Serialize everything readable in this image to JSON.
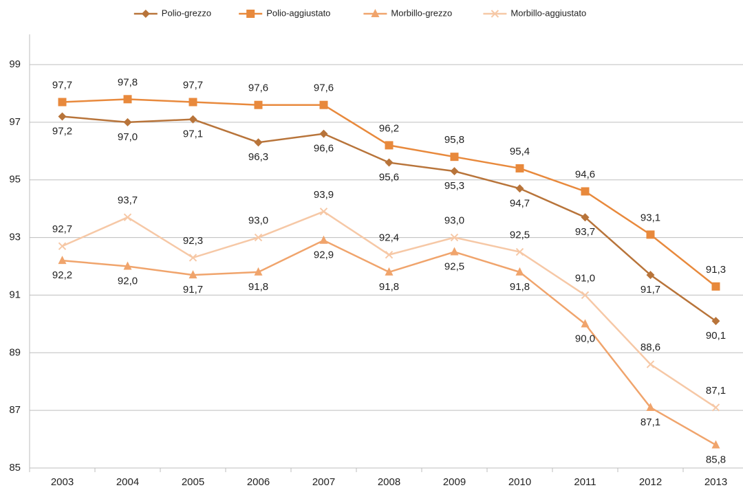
{
  "chart_data": {
    "type": "line",
    "categories": [
      "2003",
      "2004",
      "2005",
      "2006",
      "2007",
      "2008",
      "2009",
      "2010",
      "2011",
      "2012",
      "2013"
    ],
    "series": [
      {
        "name": "Polio-grezzo",
        "color": "#b8743a",
        "marker": "diamond",
        "label_position": "below",
        "values": [
          97.2,
          97.0,
          97.1,
          96.3,
          96.6,
          95.6,
          95.3,
          94.7,
          93.7,
          91.7,
          90.1
        ],
        "value_labels": [
          "97,2",
          "97,0",
          "97,1",
          "96,3",
          "96,6",
          "95,6",
          "95,3",
          "94,7",
          "93,7",
          "91,7",
          "90,1"
        ]
      },
      {
        "name": "Polio-aggiustato",
        "color": "#e8893c",
        "marker": "square",
        "label_position": "above",
        "values": [
          97.7,
          97.8,
          97.7,
          97.6,
          97.6,
          96.2,
          95.8,
          95.4,
          94.6,
          93.1,
          91.3
        ],
        "value_labels": [
          "97,7",
          "97,8",
          "97,7",
          "97,6",
          "97,6",
          "96,2",
          "95,8",
          "95,4",
          "94,6",
          "93,1",
          "91,3"
        ]
      },
      {
        "name": "Morbillo-grezzo",
        "color": "#f0a46c",
        "marker": "triangle",
        "label_position": "below",
        "values": [
          92.2,
          92.0,
          91.7,
          91.8,
          92.9,
          91.8,
          92.5,
          91.8,
          90.0,
          87.1,
          85.8
        ],
        "value_labels": [
          "92,2",
          "92,0",
          "91,7",
          "91,8",
          "92,9",
          "91,8",
          "92,5",
          "91,8",
          "90,0",
          "87,1",
          "85,8"
        ]
      },
      {
        "name": "Morbillo-aggiustato",
        "color": "#f6c8a6",
        "marker": "x",
        "label_position": "above",
        "values": [
          92.7,
          93.7,
          92.3,
          93.0,
          93.9,
          92.4,
          93.0,
          92.5,
          91.0,
          88.6,
          87.1
        ],
        "value_labels": [
          "92,7",
          "93,7",
          "92,3",
          "93,0",
          "93,9",
          "92,4",
          "93,0",
          "92,5",
          "91,0",
          "88,6",
          "87,1"
        ]
      }
    ],
    "ylim": [
      85,
      99
    ],
    "yticks": [
      85,
      87,
      89,
      91,
      93,
      95,
      97,
      99
    ],
    "grid": true,
    "legend": "top"
  }
}
